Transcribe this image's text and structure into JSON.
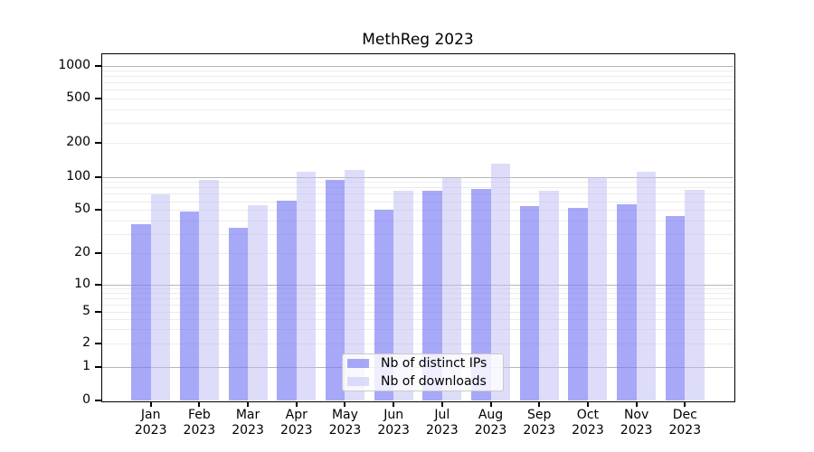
{
  "chart_data": {
    "type": "bar",
    "title": "MethReg 2023",
    "categories": [
      "Jan",
      "Feb",
      "Mar",
      "Apr",
      "May",
      "Jun",
      "Jul",
      "Aug",
      "Sep",
      "Oct",
      "Nov",
      "Dec"
    ],
    "year_line": "2023",
    "series": [
      {
        "name": "Nb of distinct IPs",
        "color": "rgba(122,122,245,0.65)",
        "values": [
          37,
          48,
          34,
          61,
          93,
          50,
          74,
          77,
          54,
          52,
          56,
          44
        ]
      },
      {
        "name": "Nb of downloads",
        "color": "rgba(188,188,246,0.5)",
        "values": [
          69,
          94,
          55,
          110,
          115,
          75,
          97,
          130,
          74,
          100,
          110,
          76
        ]
      }
    ],
    "yscale": "log-like (linear between 0 and 1)",
    "ylim": [
      0,
      1300
    ],
    "y_tick_values": [
      0,
      1,
      2,
      5,
      10,
      20,
      50,
      100,
      200,
      500,
      1000
    ],
    "y_tick_labels": [
      "0",
      "1",
      "2",
      "5",
      "10",
      "20",
      "50",
      "100",
      "200",
      "500",
      "1000"
    ],
    "grid": "on",
    "legend_position": "lower center",
    "colors": {
      "grid_major": "#b6b6b6",
      "grid_minor": "#ececec",
      "axis": "#000000"
    }
  }
}
